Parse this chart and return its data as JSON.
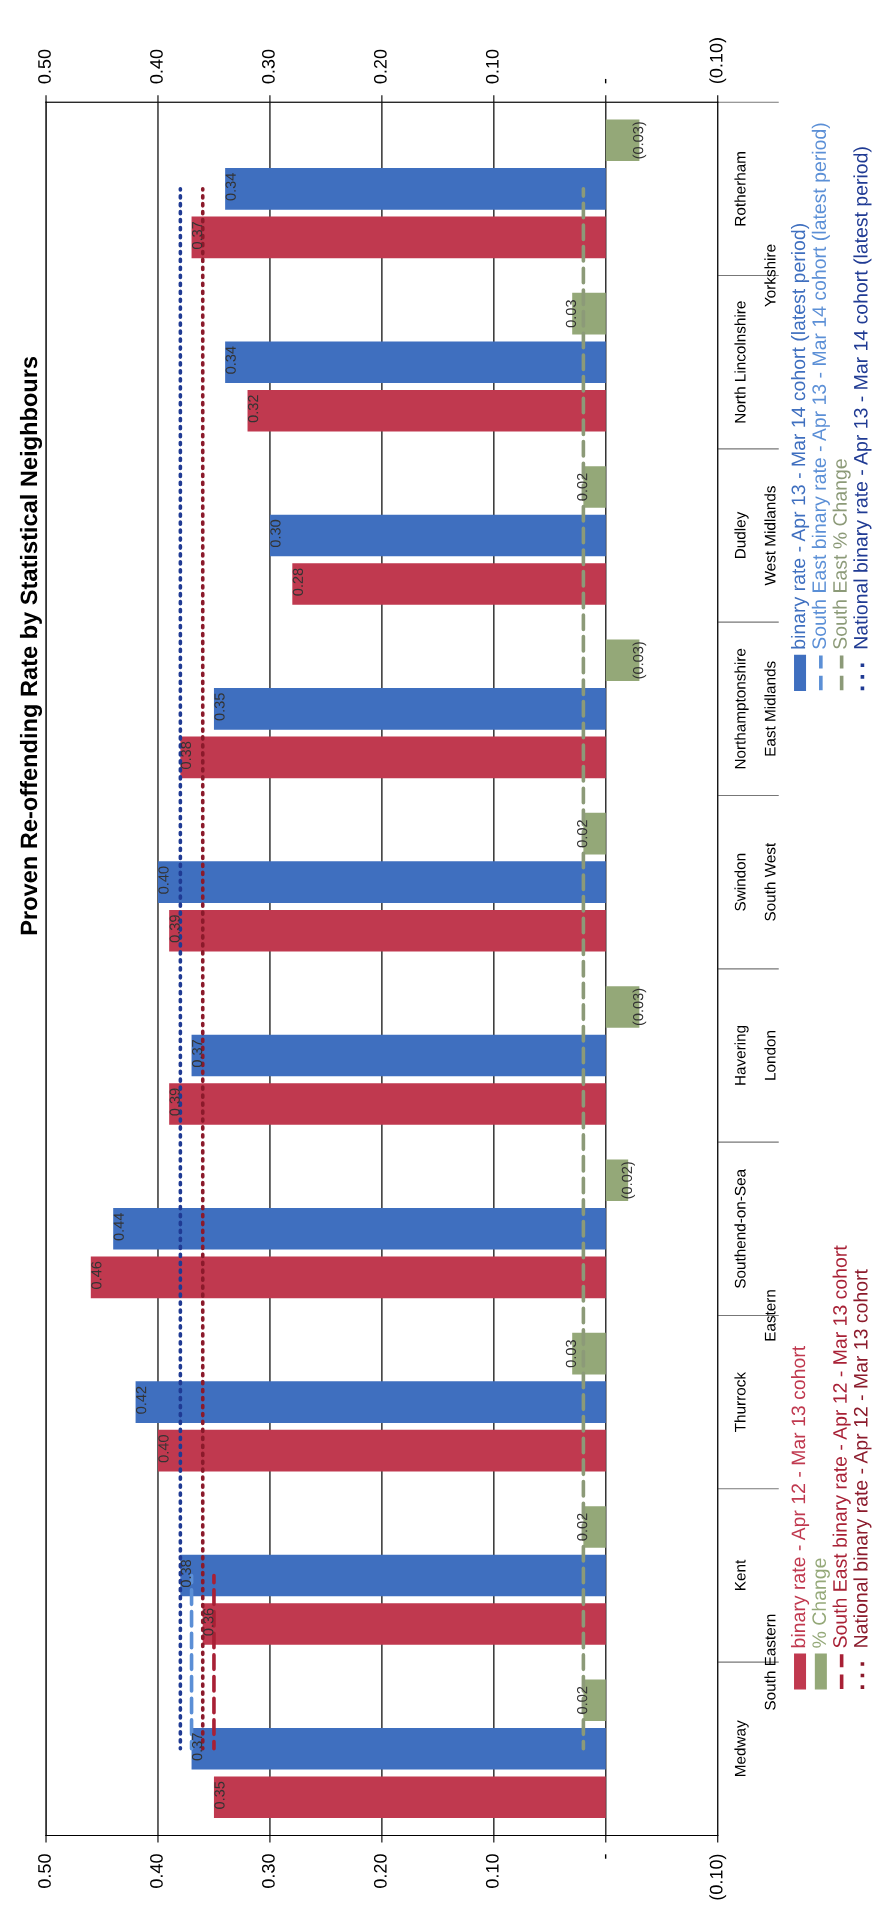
{
  "chart_data": {
    "type": "bar",
    "orientation": "horizontal",
    "title": "Proven Re-offending Rate by Statistical Neighbours",
    "categories": [
      "Rotherham",
      "North Lincolnshire",
      "Dudley",
      "Northamptonshire",
      "Swindon",
      "Havering",
      "Southend-on-Sea",
      "Thurrock",
      "Kent",
      "Medway"
    ],
    "series": [
      {
        "name": "binary rate - Apr 12 - Mar 13 cohort",
        "color": "#c0394f",
        "values": [
          0.37,
          0.32,
          0.28,
          0.38,
          0.39,
          0.39,
          0.46,
          0.4,
          0.36,
          0.35
        ],
        "value_labels": [
          "0.37",
          "0.32",
          "0.28",
          "0.38",
          "0.39",
          "0.39",
          "0.46",
          "0.40",
          "0.36",
          "0.35"
        ]
      },
      {
        "name": "binary rate - Apr 13 - Mar 14 cohort (latest period)",
        "color": "#3f6fbf",
        "values": [
          0.34,
          0.34,
          0.3,
          0.35,
          0.4,
          0.37,
          0.44,
          0.42,
          0.38,
          0.37
        ],
        "value_labels": [
          "0.34",
          "0.34",
          "0.30",
          "0.35",
          "0.40",
          "0.37",
          "0.44",
          "0.42",
          "0.38",
          "0.37"
        ]
      },
      {
        "name": "% Change",
        "color": "#94a878",
        "values": [
          -0.03,
          0.03,
          0.02,
          -0.03,
          0.02,
          -0.03,
          -0.02,
          0.03,
          0.02,
          0.02
        ],
        "value_labels": [
          "(0.03)",
          "0.03",
          "0.02",
          "(0.03)",
          "0.02",
          "(0.03)",
          "(0.02)",
          "0.03",
          "0.02",
          "0.02"
        ]
      },
      {
        "name": "South East binary rate - Apr 13 - Mar 14 cohort (latest period)",
        "type": "line",
        "line_style": "dashed",
        "color": "#5b8fd6",
        "values": [
          null,
          null,
          null,
          null,
          null,
          null,
          null,
          null,
          0.37,
          0.37
        ]
      },
      {
        "name": "South East binary rate - Apr 12 - Mar 13 cohort",
        "type": "line",
        "line_style": "dashed",
        "color": "#a82035",
        "values": [
          null,
          null,
          null,
          null,
          null,
          null,
          null,
          null,
          0.35,
          0.35
        ]
      },
      {
        "name": "South East % Change",
        "type": "line",
        "line_style": "dashed",
        "color": "#8c9a78",
        "values": [
          0.02,
          0.02,
          0.02,
          0.02,
          0.02,
          0.02,
          0.02,
          0.02,
          0.02,
          0.02
        ]
      },
      {
        "name": "National binary rate - Apr 12 - Mar 13 cohort",
        "type": "line",
        "line_style": "dotted",
        "color": "#8b1a2b",
        "values": [
          0.36,
          0.36,
          0.36,
          0.36,
          0.36,
          0.36,
          0.36,
          0.36,
          0.36,
          0.36
        ]
      },
      {
        "name": "National binary rate - Apr 13 - Mar 14 cohort (latest period)",
        "type": "line",
        "line_style": "dotted",
        "color": "#1f3a93",
        "values": [
          0.38,
          0.38,
          0.38,
          0.38,
          0.38,
          0.38,
          0.38,
          0.38,
          0.38,
          0.38
        ]
      }
    ],
    "xlim": [
      0.5,
      -0.1
    ],
    "xticks": [
      {
        "value": 0.5,
        "label": "0.50"
      },
      {
        "value": 0.4,
        "label": "0.40"
      },
      {
        "value": 0.3,
        "label": "0.30"
      },
      {
        "value": 0.2,
        "label": "0.20"
      },
      {
        "value": 0.1,
        "label": "0.10"
      },
      {
        "value": 0,
        "label": "-"
      },
      {
        "value": -0.1,
        "label": "(0.10)"
      }
    ],
    "x2lim": [
      0.5,
      -0.1
    ],
    "x2ticks": [
      {
        "value": 0.5,
        "label": "0.50"
      },
      {
        "value": 0.4,
        "label": "0.40"
      },
      {
        "value": 0.3,
        "label": "0.30"
      },
      {
        "value": 0.2,
        "label": "0.20"
      },
      {
        "value": 0.1,
        "label": "0.10"
      },
      {
        "value": 0,
        "label": "-"
      },
      {
        "value": -0.1,
        "label": "(0.10)"
      }
    ],
    "annotations": [
      "Yorkshire",
      "West Midlands",
      "East Midlands",
      "South West",
      "London",
      "Eastern",
      "South Eastern"
    ],
    "grid": "x",
    "legend": "right",
    "marker": "none"
  }
}
